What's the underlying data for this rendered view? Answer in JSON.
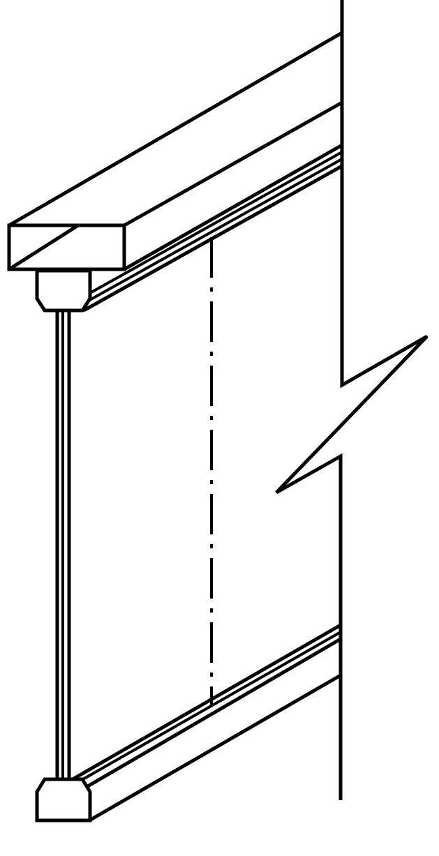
{
  "drawing": {
    "kind": "technical line drawing",
    "stroke_color": "#000000",
    "background_color": "#ffffff"
  }
}
